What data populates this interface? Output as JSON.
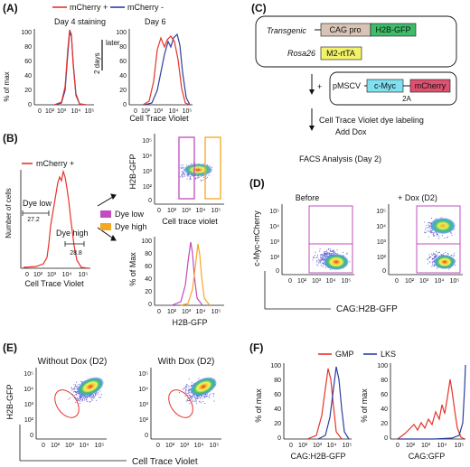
{
  "panel_labels": {
    "a": "(A)",
    "b": "(B)",
    "c": "(C)",
    "d": "(D)",
    "e": "(E)",
    "f": "(F)"
  },
  "panelA": {
    "legend": [
      "mCherry +",
      "mCherry -"
    ],
    "left_title": "Day 4 staining",
    "right_title": "Day 6",
    "between": [
      "2 days",
      "later"
    ],
    "ylabel": "% of max",
    "yticks": [
      "0",
      "20",
      "40",
      "60",
      "80",
      "100"
    ],
    "xticks": [
      "0",
      "10²",
      "10³",
      "10⁴",
      "10⁵"
    ],
    "xlabel": "Cell Trace Violet"
  },
  "panelB": {
    "legend": "mCherry +",
    "ylabel": "Number of cells",
    "xlabel": "Cell Trace Violet",
    "xticks": [
      "0",
      "10²",
      "10³",
      "10⁴",
      "10⁵"
    ],
    "dye_low": "Dye low",
    "dye_low_pct": "27.2",
    "dye_high": "Dye high",
    "dye_high_pct": "28.8",
    "key": [
      "Dye low",
      "Dye high"
    ],
    "scatter_ylabel": "H2B-GFP",
    "scatter_xlabel": "Cell trace violet",
    "scatter_yticks": [
      "10⁵",
      "10⁴",
      "10³",
      "10²",
      "0"
    ],
    "scatter_xticks": [
      "0",
      "10²",
      "10³",
      "10⁴",
      "10⁵"
    ],
    "hist_ylabel": "% of Max",
    "hist_yticks": [
      "100",
      "80",
      "60",
      "40",
      "20",
      "0"
    ],
    "hist_xticks": [
      "0",
      "10²",
      "10³",
      "10⁴",
      "10⁵"
    ],
    "hist_xlabel": "H2B-GFP"
  },
  "panelC": {
    "transgenic": "Transgenic",
    "cag_pro": "CAG pro",
    "h2b_gfp": "H2B-GFP",
    "rosa26": "Rosa26",
    "m2_rttaa": "M2-rtTA",
    "plus": "+",
    "pmscv": "pMSCV",
    "c_myc": "c-Myc",
    "mcherry": "mCherry",
    "two_a": "2A",
    "step1": "Cell Trace Violet dye labeling",
    "step2": "Add Dox",
    "step3": "FACS Analysis (Day 2)"
  },
  "panelD": {
    "before": "Before",
    "after": "+ Dox (D2)",
    "ylabel": "c-Myc-mCherry",
    "xlabel": "CAG:H2B-GFP",
    "yticks": [
      "10⁵",
      "10⁴",
      "10³",
      "10²",
      "0"
    ],
    "xticks": [
      "0",
      "10²",
      "10³",
      "10⁴",
      "10⁵"
    ]
  },
  "panelE": {
    "without": "Without Dox (D2)",
    "with": "With Dox (D2)",
    "ylabel": "H2B-GFP",
    "xlabel": "Cell Trace Violet",
    "yticks": [
      "10⁵",
      "10⁴",
      "10³",
      "10²",
      "0"
    ],
    "xticks": [
      "0",
      "10²",
      "10³",
      "10⁴",
      "10⁵"
    ]
  },
  "panelF": {
    "legend": [
      "GMP",
      "LKS"
    ],
    "ylabel": "% of max",
    "yticks": [
      "100",
      "80",
      "60",
      "40",
      "20",
      "0"
    ],
    "xticks": [
      "0",
      "10²",
      "10³",
      "10⁴",
      "10⁵"
    ],
    "left_xlabel": "CAG:H2B-GFP",
    "right_xlabel": "CAG:GFP"
  },
  "colors": {
    "red": "#e8332a",
    "blue": "#2b3f9e",
    "magenta": "#c04cc0",
    "orange": "#f5a623",
    "green": "#2db34a",
    "pink": "#e05070",
    "ygreen": "#f2f26b",
    "cyan": "#7fe0f0",
    "tan": "#d9c3b6",
    "gfp": "#3dbd6a"
  }
}
